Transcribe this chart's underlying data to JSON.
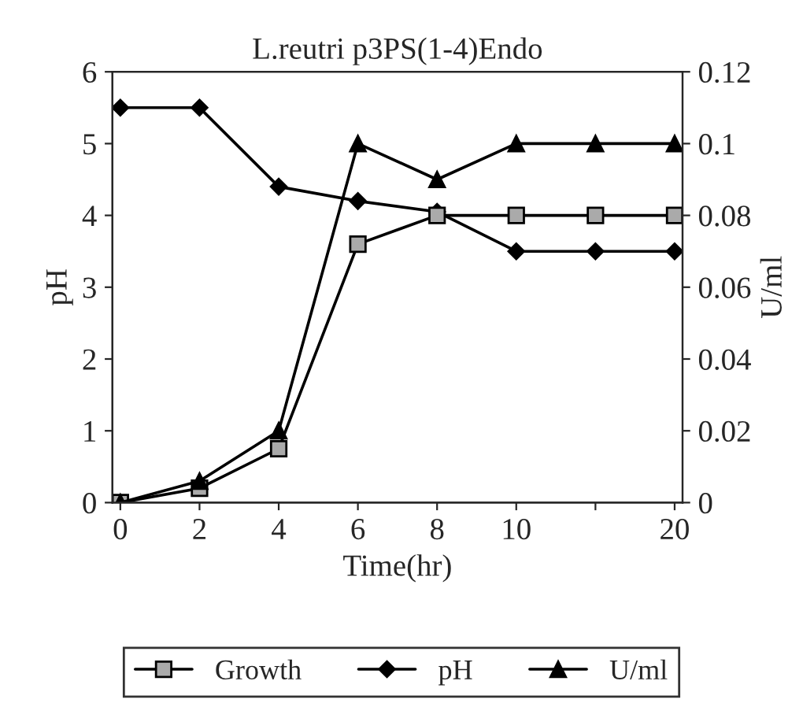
{
  "chart_data": {
    "type": "line",
    "title": "L.reutri p3PS(1-4)Endo",
    "xlabel": "Time(hr)",
    "ylabel": "pH",
    "y2label": "U/ml",
    "categories": [
      "0",
      "2",
      "4",
      "6",
      "8",
      "10",
      null,
      "20"
    ],
    "series": [
      {
        "name": "Growth",
        "color": "#000000",
        "marker": "square",
        "values": [
          0,
          0.2,
          0.75,
          3.6,
          4,
          4,
          4,
          4
        ]
      },
      {
        "name": "pH",
        "color": "#000000",
        "marker": "diamond",
        "values": [
          5.5,
          5.5,
          4.4,
          4.2,
          4.05,
          3.5,
          3.5,
          3.5
        ]
      },
      {
        "name": "U/ml",
        "color": "#000000",
        "marker": "triangle",
        "axis": "y2",
        "values": [
          0,
          0.006,
          0.02,
          0.1,
          0.09,
          0.1,
          0.1,
          0.1
        ]
      }
    ],
    "ylim": [
      0,
      6
    ],
    "yticks": [
      0,
      1,
      2,
      3,
      4,
      5,
      6
    ],
    "y2lim": [
      0,
      0.12
    ],
    "y2ticks": [
      0,
      0.02,
      0.04,
      0.06,
      0.08,
      0.1,
      0.12
    ],
    "grid": false,
    "legend": "bottom",
    "line_style": "solid"
  }
}
